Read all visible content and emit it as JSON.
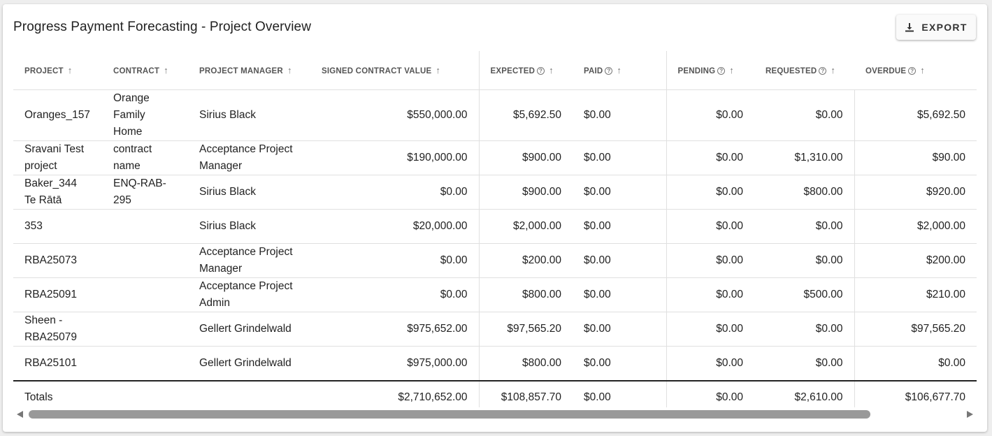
{
  "title": "Progress Payment Forecasting - Project Overview",
  "export_label": "EXPORT",
  "columns": {
    "project": "PROJECT",
    "contract": "CONTRACT",
    "manager": "PROJECT MANAGER",
    "signed": "SIGNED CONTRACT VALUE",
    "expected": "EXPECTED",
    "paid": "PAID",
    "pending": "PENDING",
    "requested": "REQUESTED",
    "overdue": "OVERDUE"
  },
  "rows": [
    {
      "project": "Oranges_157",
      "contract": "Orange Family Home",
      "manager": "Sirius Black",
      "signed": "$550,000.00",
      "expected": "$5,692.50",
      "paid": "$0.00",
      "pending": "$0.00",
      "requested": "$0.00",
      "overdue": "$5,692.50"
    },
    {
      "project": "Sravani Test project",
      "contract": "contract name",
      "manager": "Acceptance Project Manager",
      "signed": "$190,000.00",
      "expected": "$900.00",
      "paid": "$0.00",
      "pending": "$0.00",
      "requested": "$1,310.00",
      "overdue": "$90.00"
    },
    {
      "project": "Baker_344 Te Rātā",
      "contract": "ENQ-RAB-295",
      "manager": "Sirius Black",
      "signed": "$0.00",
      "expected": "$900.00",
      "paid": "$0.00",
      "pending": "$0.00",
      "requested": "$800.00",
      "overdue": "$920.00"
    },
    {
      "project": "353",
      "contract": "",
      "manager": "Sirius Black",
      "signed": "$20,000.00",
      "expected": "$2,000.00",
      "paid": "$0.00",
      "pending": "$0.00",
      "requested": "$0.00",
      "overdue": "$2,000.00"
    },
    {
      "project": "RBA25073",
      "contract": "",
      "manager": "Acceptance Project Manager",
      "signed": "$0.00",
      "expected": "$200.00",
      "paid": "$0.00",
      "pending": "$0.00",
      "requested": "$0.00",
      "overdue": "$200.00"
    },
    {
      "project": "RBA25091",
      "contract": "",
      "manager": "Acceptance Project Admin",
      "signed": "$0.00",
      "expected": "$800.00",
      "paid": "$0.00",
      "pending": "$0.00",
      "requested": "$500.00",
      "overdue": "$210.00"
    },
    {
      "project": "Sheen - RBA25079",
      "contract": "",
      "manager": "Gellert Grindelwald",
      "signed": "$975,652.00",
      "expected": "$97,565.20",
      "paid": "$0.00",
      "pending": "$0.00",
      "requested": "$0.00",
      "overdue": "$97,565.20"
    },
    {
      "project": "RBA25101",
      "contract": "",
      "manager": "Gellert Grindelwald",
      "signed": "$975,000.00",
      "expected": "$800.00",
      "paid": "$0.00",
      "pending": "$0.00",
      "requested": "$0.00",
      "overdue": "$0.00"
    }
  ],
  "totals": {
    "label": "Totals",
    "signed": "$2,710,652.00",
    "expected": "$108,857.70",
    "paid": "$0.00",
    "pending": "$0.00",
    "requested": "$2,610.00",
    "overdue": "$106,677.70"
  },
  "scroll": {
    "horizontal_position": 0
  }
}
